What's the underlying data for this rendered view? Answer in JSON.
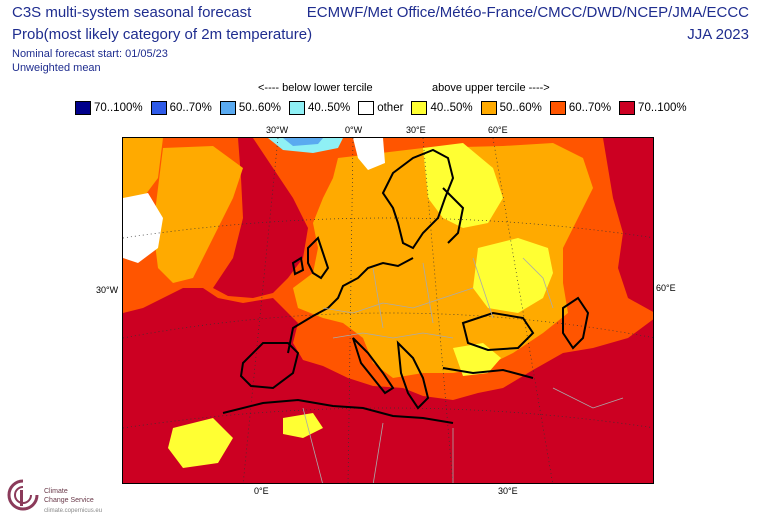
{
  "header": {
    "title_line1": "C3S multi-system seasonal forecast",
    "title_line2": "Prob(most likely category of 2m temperature)",
    "start": "Nominal forecast start: 01/05/23",
    "mean": "Unweighted mean",
    "systems": "ECMWF/Met Office/Météo-France/CMCC/DWD/NCEP/JMA/ECCC",
    "season": "JJA 2023"
  },
  "terciles": {
    "below": "<---- below lower tercile",
    "above": "above upper tercile ---->"
  },
  "legend": [
    {
      "label": "70..100%",
      "color": "#00008b"
    },
    {
      "label": "60..70%",
      "color": "#2f5be8"
    },
    {
      "label": "50..60%",
      "color": "#5aaaf0"
    },
    {
      "label": "40..50%",
      "color": "#8ff0f5"
    },
    {
      "label": "other",
      "color": "#ffffff"
    },
    {
      "label": "40..50%",
      "color": "#ffff33"
    },
    {
      "label": "50..60%",
      "color": "#ffaa00"
    },
    {
      "label": "60..70%",
      "color": "#ff5500"
    },
    {
      "label": "70..100%",
      "color": "#cc0022"
    }
  ],
  "axes": {
    "top_30w": "30°W",
    "top_0w": "0°W",
    "top_30e": "30°E",
    "top_60e": "60°E",
    "left_30w": "30°W",
    "right_60e": "60°E",
    "bottom_0e": "0°E",
    "bottom_30e": "30°E"
  },
  "logo": {
    "line1": "Climate",
    "line2": "Change Service",
    "line3": "climate.copernicus.eu"
  }
}
